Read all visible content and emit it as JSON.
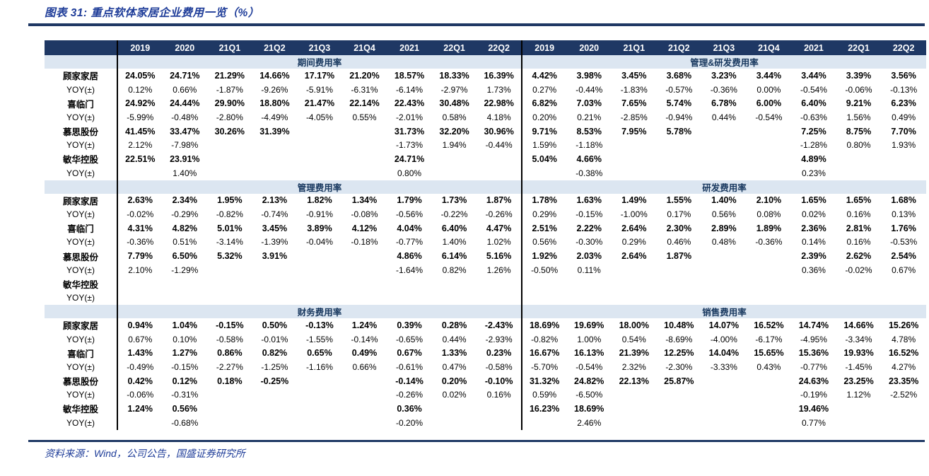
{
  "chart_data": {
    "type": "table",
    "title": "图表 31: 重点软体家居企业费用一览（%）",
    "source": "资料来源：Wind，公司公告，国盛证券研究所",
    "columns": [
      "2019",
      "2020",
      "21Q1",
      "21Q2",
      "21Q3",
      "21Q4",
      "2021",
      "22Q1",
      "22Q2"
    ],
    "sections": [
      {
        "left_title": "期间费用率",
        "right_title": "管理&研发费用率",
        "rows": [
          {
            "label": "顾家家居",
            "bold": true,
            "left": [
              "24.05%",
              "24.71%",
              "21.29%",
              "14.66%",
              "17.17%",
              "21.20%",
              "18.57%",
              "18.33%",
              "16.39%"
            ],
            "right": [
              "4.42%",
              "3.98%",
              "3.45%",
              "3.68%",
              "3.23%",
              "3.44%",
              "3.44%",
              "3.39%",
              "3.56%"
            ]
          },
          {
            "label": "YOY(±)",
            "bold": false,
            "left": [
              "0.12%",
              "0.66%",
              "-1.87%",
              "-9.26%",
              "-5.91%",
              "-6.31%",
              "-6.14%",
              "-2.97%",
              "1.73%"
            ],
            "right": [
              "0.27%",
              "-0.44%",
              "-1.83%",
              "-0.57%",
              "-0.36%",
              "0.00%",
              "-0.54%",
              "-0.06%",
              "-0.13%"
            ]
          },
          {
            "label": "喜临门",
            "bold": true,
            "left": [
              "24.92%",
              "24.44%",
              "29.90%",
              "18.80%",
              "21.47%",
              "22.14%",
              "22.43%",
              "30.48%",
              "22.98%"
            ],
            "right": [
              "6.82%",
              "7.03%",
              "7.65%",
              "5.74%",
              "6.78%",
              "6.00%",
              "6.40%",
              "9.21%",
              "6.23%"
            ]
          },
          {
            "label": "YOY(±)",
            "bold": false,
            "left": [
              "-5.99%",
              "-0.48%",
              "-2.80%",
              "-4.49%",
              "-4.05%",
              "0.55%",
              "-2.01%",
              "0.58%",
              "4.18%"
            ],
            "right": [
              "0.20%",
              "0.21%",
              "-2.85%",
              "-0.94%",
              "0.44%",
              "-0.54%",
              "-0.63%",
              "1.56%",
              "0.49%"
            ]
          },
          {
            "label": "慕思股份",
            "bold": true,
            "left": [
              "41.45%",
              "33.47%",
              "30.26%",
              "31.39%",
              "",
              "",
              "31.73%",
              "32.20%",
              "30.96%"
            ],
            "right": [
              "9.71%",
              "8.53%",
              "7.95%",
              "5.78%",
              "",
              "",
              "7.25%",
              "8.75%",
              "7.70%"
            ]
          },
          {
            "label": "YOY(±)",
            "bold": false,
            "left": [
              "2.12%",
              "-7.98%",
              "",
              "",
              "",
              "",
              "-1.73%",
              "1.94%",
              "-0.44%"
            ],
            "right": [
              "1.59%",
              "-1.18%",
              "",
              "",
              "",
              "",
              "-1.28%",
              "0.80%",
              "1.93%"
            ]
          },
          {
            "label": "敏华控股",
            "bold": true,
            "left": [
              "22.51%",
              "23.91%",
              "",
              "",
              "",
              "",
              "24.71%",
              "",
              ""
            ],
            "right": [
              "5.04%",
              "4.66%",
              "",
              "",
              "",
              "",
              "4.89%",
              "",
              ""
            ]
          },
          {
            "label": "YOY(±)",
            "bold": false,
            "left": [
              "",
              "1.40%",
              "",
              "",
              "",
              "",
              "0.80%",
              "",
              ""
            ],
            "right": [
              "",
              "-0.38%",
              "",
              "",
              "",
              "",
              "0.23%",
              "",
              ""
            ]
          }
        ]
      },
      {
        "left_title": "管理费用率",
        "right_title": "研发费用率",
        "rows": [
          {
            "label": "顾家家居",
            "bold": true,
            "left": [
              "2.63%",
              "2.34%",
              "1.95%",
              "2.13%",
              "1.82%",
              "1.34%",
              "1.79%",
              "1.73%",
              "1.87%"
            ],
            "right": [
              "1.78%",
              "1.63%",
              "1.49%",
              "1.55%",
              "1.40%",
              "2.10%",
              "1.65%",
              "1.65%",
              "1.68%"
            ]
          },
          {
            "label": "YOY(±)",
            "bold": false,
            "left": [
              "-0.02%",
              "-0.29%",
              "-0.82%",
              "-0.74%",
              "-0.91%",
              "-0.08%",
              "-0.56%",
              "-0.22%",
              "-0.26%"
            ],
            "right": [
              "0.29%",
              "-0.15%",
              "-1.00%",
              "0.17%",
              "0.56%",
              "0.08%",
              "0.02%",
              "0.16%",
              "0.13%"
            ]
          },
          {
            "label": "喜临门",
            "bold": true,
            "left": [
              "4.31%",
              "4.82%",
              "5.01%",
              "3.45%",
              "3.89%",
              "4.12%",
              "4.04%",
              "6.40%",
              "4.47%"
            ],
            "right": [
              "2.51%",
              "2.22%",
              "2.64%",
              "2.30%",
              "2.89%",
              "1.89%",
              "2.36%",
              "2.81%",
              "1.76%"
            ]
          },
          {
            "label": "YOY(±)",
            "bold": false,
            "left": [
              "-0.36%",
              "0.51%",
              "-3.14%",
              "-1.39%",
              "-0.04%",
              "-0.18%",
              "-0.77%",
              "1.40%",
              "1.02%"
            ],
            "right": [
              "0.56%",
              "-0.30%",
              "0.29%",
              "0.46%",
              "0.48%",
              "-0.36%",
              "0.14%",
              "0.16%",
              "-0.53%"
            ]
          },
          {
            "label": "慕思股份",
            "bold": true,
            "left": [
              "7.79%",
              "6.50%",
              "5.32%",
              "3.91%",
              "",
              "",
              "4.86%",
              "6.14%",
              "5.16%"
            ],
            "right": [
              "1.92%",
              "2.03%",
              "2.64%",
              "1.87%",
              "",
              "",
              "2.39%",
              "2.62%",
              "2.54%"
            ]
          },
          {
            "label": "YOY(±)",
            "bold": false,
            "left": [
              "2.10%",
              "-1.29%",
              "",
              "",
              "",
              "",
              "-1.64%",
              "0.82%",
              "1.26%"
            ],
            "right": [
              "-0.50%",
              "0.11%",
              "",
              "",
              "",
              "",
              "0.36%",
              "-0.02%",
              "0.67%"
            ]
          },
          {
            "label": "敏华控股",
            "bold": true,
            "left": [
              "",
              "",
              "",
              "",
              "",
              "",
              "",
              "",
              ""
            ],
            "right": [
              "",
              "",
              "",
              "",
              "",
              "",
              "",
              "",
              ""
            ]
          },
          {
            "label": "YOY(±)",
            "bold": false,
            "left": [
              "",
              "",
              "",
              "",
              "",
              "",
              "",
              "",
              ""
            ],
            "right": [
              "",
              "",
              "",
              "",
              "",
              "",
              "",
              "",
              ""
            ]
          }
        ]
      },
      {
        "left_title": "财务费用率",
        "right_title": "销售费用率",
        "rows": [
          {
            "label": "顾家家居",
            "bold": true,
            "left": [
              "0.94%",
              "1.04%",
              "-0.15%",
              "0.50%",
              "-0.13%",
              "1.24%",
              "0.39%",
              "0.28%",
              "-2.43%"
            ],
            "right": [
              "18.69%",
              "19.69%",
              "18.00%",
              "10.48%",
              "14.07%",
              "16.52%",
              "14.74%",
              "14.66%",
              "15.26%"
            ]
          },
          {
            "label": "YOY(±)",
            "bold": false,
            "left": [
              "0.67%",
              "0.10%",
              "-0.58%",
              "-0.01%",
              "-1.55%",
              "-0.14%",
              "-0.65%",
              "0.44%",
              "-2.93%"
            ],
            "right": [
              "-0.82%",
              "1.00%",
              "0.54%",
              "-8.69%",
              "-4.00%",
              "-6.17%",
              "-4.95%",
              "-3.34%",
              "4.78%"
            ]
          },
          {
            "label": "喜临门",
            "bold": true,
            "left": [
              "1.43%",
              "1.27%",
              "0.86%",
              "0.82%",
              "0.65%",
              "0.49%",
              "0.67%",
              "1.33%",
              "0.23%"
            ],
            "right": [
              "16.67%",
              "16.13%",
              "21.39%",
              "12.25%",
              "14.04%",
              "15.65%",
              "15.36%",
              "19.93%",
              "16.52%"
            ]
          },
          {
            "label": "YOY(±)",
            "bold": false,
            "left": [
              "-0.49%",
              "-0.15%",
              "-2.27%",
              "-1.25%",
              "-1.16%",
              "0.66%",
              "-0.61%",
              "0.47%",
              "-0.58%"
            ],
            "right": [
              "-5.70%",
              "-0.54%",
              "2.32%",
              "-2.30%",
              "-3.33%",
              "0.43%",
              "-0.77%",
              "-1.45%",
              "4.27%"
            ]
          },
          {
            "label": "慕思股份",
            "bold": true,
            "left": [
              "0.42%",
              "0.12%",
              "0.18%",
              "-0.25%",
              "",
              "",
              "-0.14%",
              "0.20%",
              "-0.10%"
            ],
            "right": [
              "31.32%",
              "24.82%",
              "22.13%",
              "25.87%",
              "",
              "",
              "24.63%",
              "23.25%",
              "23.35%"
            ]
          },
          {
            "label": "YOY(±)",
            "bold": false,
            "left": [
              "-0.06%",
              "-0.31%",
              "",
              "",
              "",
              "",
              "-0.26%",
              "0.02%",
              "0.16%"
            ],
            "right": [
              "0.59%",
              "-6.50%",
              "",
              "",
              "",
              "",
              "-0.19%",
              "1.12%",
              "-2.52%"
            ]
          },
          {
            "label": "敏华控股",
            "bold": true,
            "left": [
              "1.24%",
              "0.56%",
              "",
              "",
              "",
              "",
              "0.36%",
              "",
              ""
            ],
            "right": [
              "16.23%",
              "18.69%",
              "",
              "",
              "",
              "",
              "19.46%",
              "",
              ""
            ]
          },
          {
            "label": "YOY(±)",
            "bold": false,
            "left": [
              "",
              "-0.68%",
              "",
              "",
              "",
              "",
              "-0.20%",
              "",
              ""
            ],
            "right": [
              "",
              "2.46%",
              "",
              "",
              "",
              "",
              "0.77%",
              "",
              ""
            ]
          }
        ]
      }
    ]
  }
}
